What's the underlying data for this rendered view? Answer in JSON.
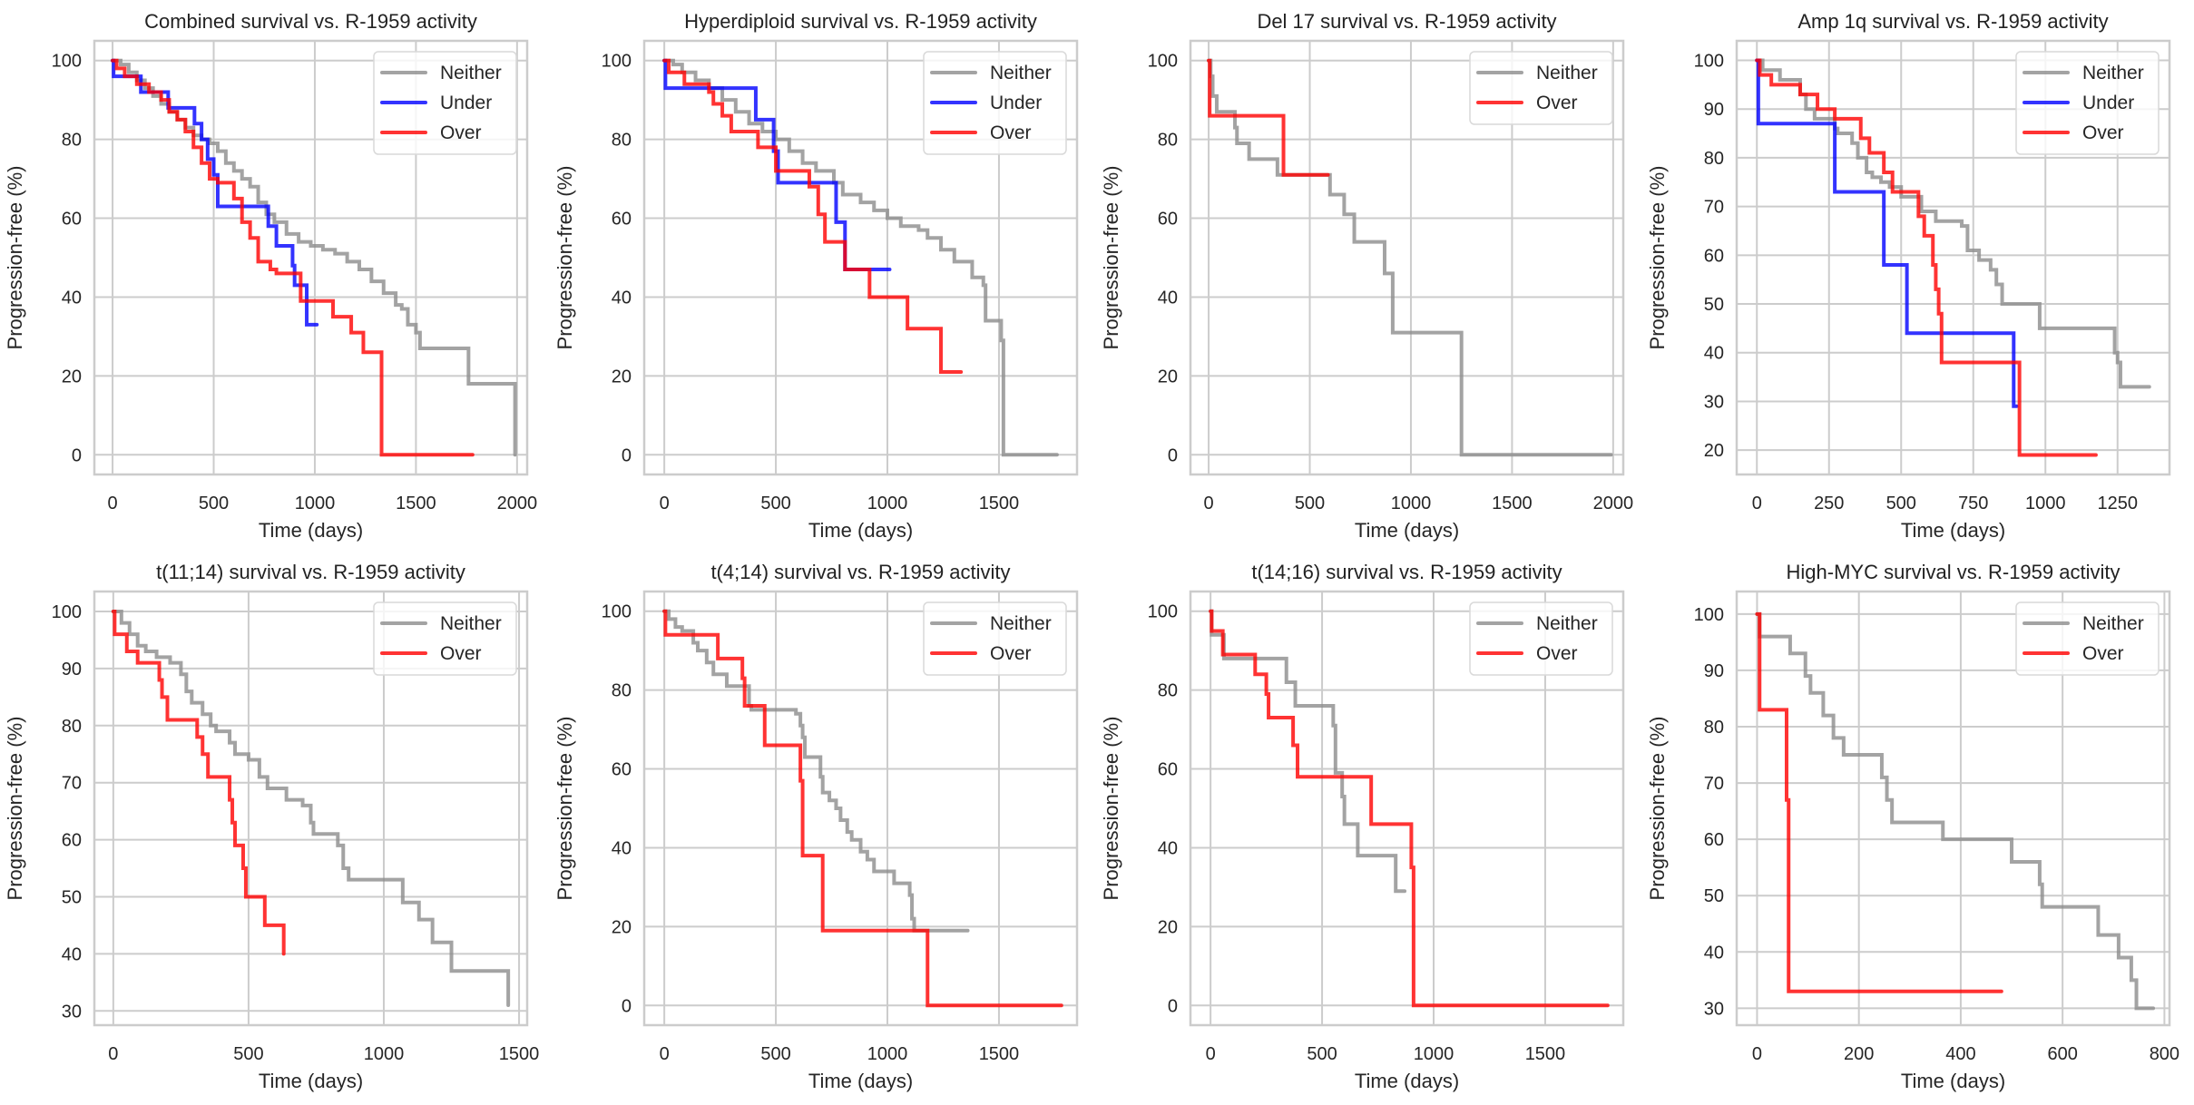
{
  "figure": {
    "series_colors": {
      "Neither": "#8c8c8c",
      "Under": "#0000ff",
      "Over": "#ff0000"
    },
    "grid_color": "#cccccc",
    "frame_color": "#cccccc"
  },
  "chart_data": [
    {
      "type": "line",
      "step": true,
      "title": "Combined survival vs. R-1959 activity",
      "xlabel": "Time (days)",
      "ylabel": "Progression-free (%)",
      "xlim": [
        -90,
        2050
      ],
      "ylim": [
        -5,
        105
      ],
      "xticks": [
        0,
        500,
        1000,
        1500,
        2000
      ],
      "yticks": [
        0,
        20,
        40,
        60,
        80,
        100
      ],
      "grid": true,
      "legend": "top-right",
      "series": [
        {
          "name": "Neither",
          "x": [
            0,
            40,
            80,
            120,
            160,
            200,
            240,
            280,
            320,
            360,
            400,
            440,
            480,
            520,
            560,
            600,
            640,
            680,
            720,
            760,
            800,
            860,
            920,
            980,
            1040,
            1100,
            1160,
            1220,
            1280,
            1340,
            1400,
            1430,
            1460,
            1500,
            1520,
            1760,
            1990
          ],
          "y": [
            100,
            99,
            97,
            95,
            93,
            91,
            89,
            87,
            85,
            83,
            81,
            80,
            79,
            77,
            74,
            72,
            70,
            68,
            64,
            61,
            59,
            56,
            54,
            53,
            52,
            51,
            49,
            47,
            44,
            41,
            38,
            37,
            33,
            31,
            27,
            18,
            0
          ]
        },
        {
          "name": "Under",
          "x": [
            0,
            5,
            140,
            275,
            405,
            440,
            470,
            500,
            520,
            770,
            810,
            890,
            900,
            960,
            1010
          ],
          "y": [
            100,
            96,
            92,
            88,
            84,
            80,
            75,
            71,
            63,
            58,
            53,
            48,
            43,
            33,
            33
          ]
        },
        {
          "name": "Over",
          "x": [
            0,
            20,
            60,
            120,
            180,
            240,
            280,
            320,
            360,
            400,
            440,
            480,
            520,
            600,
            640,
            680,
            720,
            780,
            810,
            930,
            1090,
            1180,
            1240,
            1330,
            1780
          ],
          "y": [
            100,
            98,
            96,
            94,
            92,
            90,
            87,
            85,
            82,
            78,
            74,
            70,
            69,
            65,
            59,
            55,
            49,
            47,
            46,
            39,
            35,
            31,
            26,
            0,
            0
          ]
        }
      ]
    },
    {
      "type": "line",
      "step": true,
      "title": "Hyperdiploid survival vs. R-1959 activity",
      "xlabel": "Time (days)",
      "ylabel": "Progression-free (%)",
      "xlim": [
        -90,
        1850
      ],
      "ylim": [
        -5,
        105
      ],
      "xticks": [
        0,
        500,
        1000,
        1500
      ],
      "yticks": [
        0,
        20,
        40,
        60,
        80,
        100
      ],
      "grid": true,
      "legend": "top-right",
      "series": [
        {
          "name": "Neither",
          "x": [
            0,
            40,
            80,
            140,
            200,
            260,
            320,
            380,
            440,
            500,
            560,
            620,
            680,
            760,
            800,
            880,
            940,
            1000,
            1060,
            1140,
            1180,
            1240,
            1300,
            1380,
            1430,
            1440,
            1510,
            1520,
            1760
          ],
          "y": [
            100,
            99,
            97,
            95,
            93,
            90,
            87,
            84,
            82,
            80,
            77,
            74,
            72,
            69,
            66,
            64,
            62,
            60,
            58,
            57,
            55,
            52,
            49,
            45,
            43,
            34,
            29,
            0,
            0
          ]
        },
        {
          "name": "Under",
          "x": [
            0,
            5,
            410,
            490,
            510,
            770,
            810,
            1010
          ],
          "y": [
            100,
            93,
            85,
            77,
            69,
            59,
            47,
            47
          ]
        },
        {
          "name": "Over",
          "x": [
            0,
            20,
            90,
            200,
            220,
            260,
            300,
            420,
            500,
            650,
            690,
            720,
            810,
            920,
            1090,
            1240,
            1330
          ],
          "y": [
            100,
            97,
            94,
            92,
            89,
            86,
            82,
            78,
            72,
            68,
            61,
            54,
            47,
            40,
            32,
            21,
            21
          ]
        }
      ]
    },
    {
      "type": "line",
      "step": true,
      "title": "Del 17 survival vs. R-1959 activity",
      "xlabel": "Time (days)",
      "ylabel": "Progression-free (%)",
      "xlim": [
        -90,
        2050
      ],
      "ylim": [
        -5,
        105
      ],
      "xticks": [
        0,
        500,
        1000,
        1500,
        2000
      ],
      "yticks": [
        0,
        20,
        40,
        60,
        80,
        100
      ],
      "grid": true,
      "legend": "top-right",
      "series": [
        {
          "name": "Neither",
          "x": [
            0,
            10,
            20,
            40,
            130,
            140,
            200,
            340,
            600,
            670,
            720,
            870,
            910,
            1250,
            1990
          ],
          "y": [
            100,
            96,
            91,
            87,
            83,
            79,
            75,
            71,
            66,
            61,
            54,
            46,
            31,
            0,
            0
          ]
        },
        {
          "name": "Over",
          "x": [
            0,
            5,
            370,
            590
          ],
          "y": [
            100,
            86,
            71,
            71
          ]
        }
      ]
    },
    {
      "type": "line",
      "step": true,
      "title": "Amp 1q survival vs. R-1959 activity",
      "xlabel": "Time (days)",
      "ylabel": "Progression-free (%)",
      "xlim": [
        -70,
        1430
      ],
      "ylim": [
        15,
        104
      ],
      "xticks": [
        0,
        250,
        500,
        750,
        1000,
        1250
      ],
      "yticks": [
        20,
        30,
        40,
        50,
        60,
        70,
        80,
        90,
        100
      ],
      "grid": true,
      "legend": "top-right",
      "series": [
        {
          "name": "Neither",
          "x": [
            0,
            20,
            80,
            150,
            170,
            200,
            270,
            280,
            330,
            350,
            380,
            400,
            430,
            460,
            500,
            570,
            620,
            710,
            730,
            770,
            810,
            830,
            850,
            980,
            1240,
            1250,
            1260,
            1360
          ],
          "y": [
            100,
            98,
            96,
            93,
            90,
            88,
            86,
            85,
            83,
            80,
            77,
            76,
            75,
            74,
            72,
            69,
            67,
            66,
            61,
            59,
            57,
            54,
            50,
            45,
            40,
            38,
            33,
            33
          ]
        },
        {
          "name": "Under",
          "x": [
            0,
            5,
            270,
            440,
            520,
            890,
            900
          ],
          "y": [
            100,
            87,
            73,
            58,
            44,
            29,
            29
          ]
        },
        {
          "name": "Over",
          "x": [
            0,
            10,
            50,
            150,
            210,
            270,
            360,
            390,
            440,
            470,
            560,
            580,
            610,
            620,
            630,
            640,
            900,
            910,
            1175
          ],
          "y": [
            100,
            97,
            95,
            93,
            90,
            88,
            84,
            81,
            77,
            73,
            68,
            64,
            58,
            53,
            48,
            38,
            38,
            19,
            19
          ]
        }
      ]
    },
    {
      "type": "line",
      "step": true,
      "title": "t(11;14) survival vs. R-1959 activity",
      "xlabel": "Time (days)",
      "ylabel": "Progression-free (%)",
      "xlim": [
        -70,
        1530
      ],
      "ylim": [
        27.5,
        103.5
      ],
      "xticks": [
        0,
        500,
        1000,
        1500
      ],
      "yticks": [
        30,
        40,
        50,
        60,
        70,
        80,
        90,
        100
      ],
      "grid": true,
      "legend": "top-right",
      "series": [
        {
          "name": "Neither",
          "x": [
            0,
            30,
            60,
            90,
            120,
            160,
            210,
            250,
            270,
            290,
            330,
            360,
            380,
            430,
            450,
            500,
            540,
            570,
            640,
            700,
            730,
            740,
            830,
            850,
            870,
            1070,
            1130,
            1180,
            1250,
            1460
          ],
          "y": [
            100,
            98,
            96,
            94,
            93,
            92,
            91,
            89,
            86,
            84,
            82,
            80,
            79,
            77,
            75,
            74,
            71,
            69,
            67,
            66,
            63,
            61,
            59,
            55,
            53,
            49,
            46,
            42,
            37,
            31
          ]
        },
        {
          "name": "Over",
          "x": [
            0,
            5,
            50,
            90,
            170,
            180,
            200,
            310,
            330,
            350,
            430,
            440,
            450,
            480,
            490,
            560,
            630
          ],
          "y": [
            100,
            96,
            93,
            91,
            88,
            85,
            81,
            78,
            75,
            71,
            67,
            63,
            59,
            55,
            50,
            45,
            40
          ]
        }
      ]
    },
    {
      "type": "line",
      "step": true,
      "title": "t(4;14) survival vs. R-1959 activity",
      "xlabel": "Time (days)",
      "ylabel": "Progression-free (%)",
      "xlim": [
        -90,
        1850
      ],
      "ylim": [
        -5,
        105
      ],
      "xticks": [
        0,
        500,
        1000,
        1500
      ],
      "yticks": [
        0,
        20,
        40,
        60,
        80,
        100
      ],
      "grid": true,
      "legend": "top-right",
      "series": [
        {
          "name": "Neither",
          "x": [
            0,
            20,
            50,
            80,
            130,
            150,
            190,
            220,
            280,
            380,
            390,
            590,
            610,
            620,
            630,
            700,
            710,
            740,
            770,
            790,
            820,
            840,
            880,
            910,
            940,
            1030,
            1100,
            1110,
            1120,
            1360
          ],
          "y": [
            100,
            98,
            96,
            95,
            92,
            90,
            87,
            84,
            81,
            76,
            75,
            74,
            71,
            68,
            63,
            58,
            54,
            52,
            50,
            47,
            44,
            42,
            39,
            37,
            34,
            31,
            28,
            22,
            19,
            19
          ]
        },
        {
          "name": "Over",
          "x": [
            0,
            5,
            240,
            350,
            360,
            450,
            610,
            620,
            710,
            1180,
            1780
          ],
          "y": [
            100,
            94,
            88,
            83,
            76,
            66,
            57,
            38,
            19,
            0,
            0
          ]
        }
      ]
    },
    {
      "type": "line",
      "step": true,
      "title": "t(14;16) survival vs. R-1959 activity",
      "xlabel": "Time (days)",
      "ylabel": "Progression-free (%)",
      "xlim": [
        -90,
        1850
      ],
      "ylim": [
        -5,
        105
      ],
      "xticks": [
        0,
        500,
        1000,
        1500
      ],
      "yticks": [
        0,
        20,
        40,
        60,
        80,
        100
      ],
      "grid": true,
      "legend": "top-right",
      "series": [
        {
          "name": "Neither",
          "x": [
            0,
            5,
            60,
            340,
            380,
            550,
            560,
            590,
            600,
            660,
            830,
            870
          ],
          "y": [
            100,
            94,
            88,
            82,
            76,
            71,
            59,
            53,
            46,
            38,
            29,
            29
          ]
        },
        {
          "name": "Over",
          "x": [
            0,
            5,
            55,
            200,
            250,
            260,
            370,
            390,
            720,
            900,
            910,
            920,
            1780
          ],
          "y": [
            100,
            95,
            89,
            84,
            79,
            73,
            66,
            58,
            46,
            35,
            0,
            0,
            0
          ]
        }
      ]
    },
    {
      "type": "line",
      "step": true,
      "title": "High-MYC survival vs. R-1959 activity",
      "xlabel": "Time (days)",
      "ylabel": "Progression-free (%)",
      "xlim": [
        -40,
        810
      ],
      "ylim": [
        27,
        104
      ],
      "xticks": [
        0,
        200,
        400,
        600,
        800
      ],
      "yticks": [
        30,
        40,
        50,
        60,
        70,
        80,
        90,
        100
      ],
      "grid": true,
      "legend": "top-right",
      "series": [
        {
          "name": "Neither",
          "x": [
            0,
            5,
            65,
            95,
            105,
            130,
            150,
            170,
            245,
            255,
            265,
            365,
            500,
            555,
            560,
            670,
            710,
            735,
            745,
            778
          ],
          "y": [
            100,
            96,
            93,
            89,
            86,
            82,
            78,
            75,
            71,
            67,
            63,
            60,
            56,
            52,
            48,
            43,
            39,
            35,
            30,
            30
          ]
        },
        {
          "name": "Over",
          "x": [
            0,
            5,
            58,
            62,
            480
          ],
          "y": [
            100,
            83,
            67,
            33,
            33
          ]
        }
      ]
    }
  ]
}
